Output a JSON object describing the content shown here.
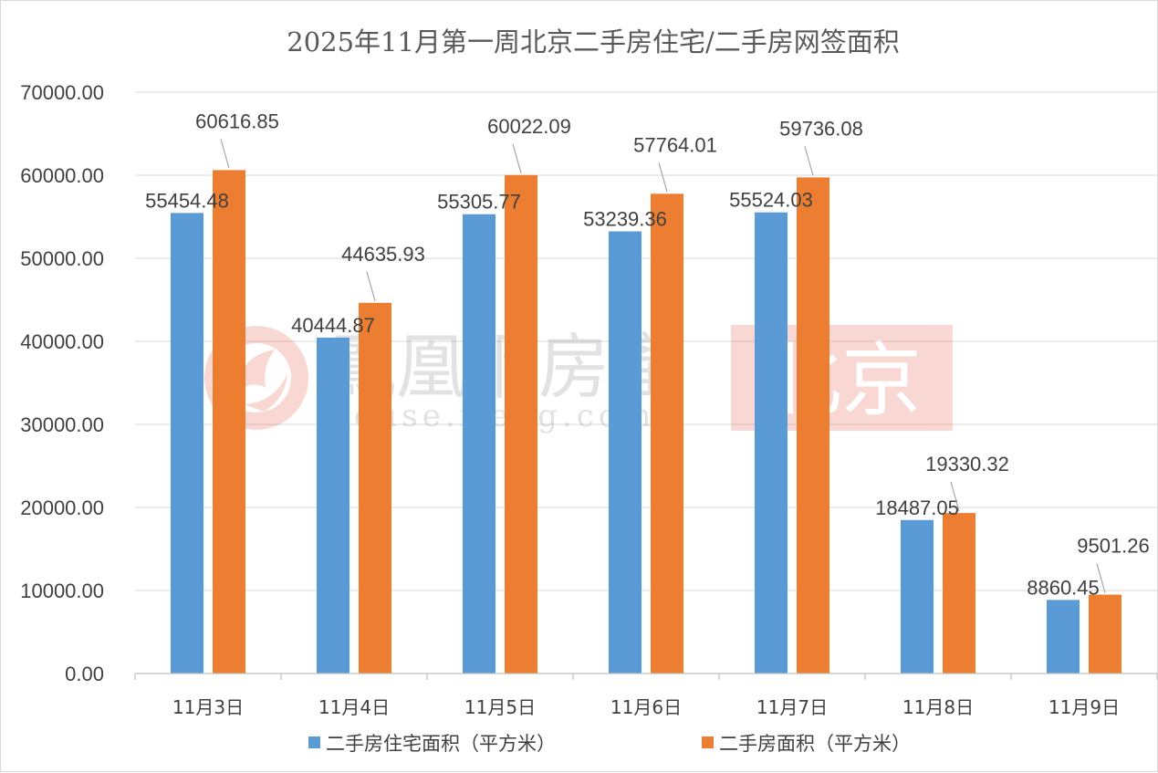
{
  "chart_data": {
    "type": "bar",
    "title": "2025年11月第一周北京二手房住宅/二手房网签面积",
    "categories": [
      "11月3日",
      "11月4日",
      "11月5日",
      "11月6日",
      "11月7日",
      "11月8日",
      "11月9日"
    ],
    "series": [
      {
        "name": "二手房住宅面积（平方米）",
        "color": "#5b9bd5",
        "values": [
          55454.48,
          40444.87,
          55305.77,
          53239.36,
          55524.03,
          18487.05,
          8860.45
        ],
        "labels": [
          "55454.48",
          "40444.87",
          "55305.77",
          "53239.36",
          "55524.03",
          "18487.05",
          "8860.45"
        ]
      },
      {
        "name": "二手房面积（平方米）",
        "color": "#ed7d31",
        "values": [
          60616.85,
          44635.93,
          60022.09,
          57764.01,
          59736.08,
          19330.32,
          9501.26
        ],
        "labels": [
          "60616.85",
          "44635.93",
          "60022.09",
          "57764.01",
          "59736.08",
          "19330.32",
          "9501.26"
        ]
      }
    ],
    "ylim": [
      0,
      70000
    ],
    "yticks": [
      "0.00",
      "10000.00",
      "20000.00",
      "30000.00",
      "40000.00",
      "50000.00",
      "60000.00",
      "70000.00"
    ],
    "grid": true,
    "legend": "bottom"
  },
  "watermark": {
    "brand": "鳳凰網房產",
    "url": "house.ifeng.com",
    "city": "北京",
    "logo": "ifeng-phoenix-logo"
  }
}
